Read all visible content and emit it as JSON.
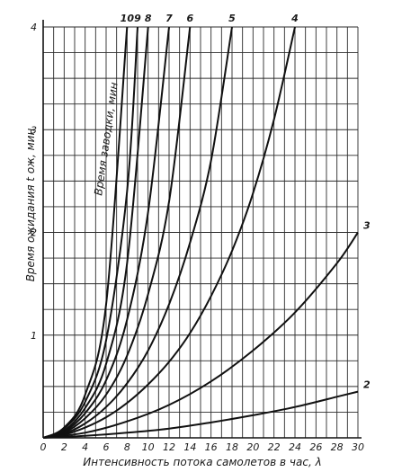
{
  "chart_data": {
    "type": "line",
    "xlabel": "Интенсивность потока самолетов в час, λ",
    "ylabel": "Время ожидания t ож, мин",
    "curve_family_label": "Время заводки, мин",
    "xlim": [
      0,
      30
    ],
    "ylim": [
      0,
      4
    ],
    "x_ticks": [
      "0",
      "2",
      "4",
      "6",
      "8",
      "10",
      "12",
      "14",
      "16",
      "18",
      "20",
      "22",
      "24",
      "26",
      "28",
      "30"
    ],
    "y_ticks": [
      "1",
      "2",
      "3",
      "4"
    ],
    "grid": true,
    "series": [
      {
        "name": "10",
        "x": [
          0,
          2,
          4,
          6,
          8
        ],
        "y": [
          0,
          0.1,
          0.42,
          1.3,
          4.0
        ]
      },
      {
        "name": "9",
        "x": [
          0,
          2,
          4,
          6,
          8,
          9
        ],
        "y": [
          0,
          0.09,
          0.35,
          0.95,
          2.4,
          4.0
        ]
      },
      {
        "name": "8",
        "x": [
          0,
          2,
          4,
          6,
          8,
          10
        ],
        "y": [
          0,
          0.07,
          0.29,
          0.72,
          1.7,
          4.0
        ]
      },
      {
        "name": "7",
        "x": [
          0,
          2,
          4,
          6,
          8,
          10,
          12
        ],
        "y": [
          0,
          0.06,
          0.24,
          0.56,
          1.15,
          2.2,
          4.0
        ]
      },
      {
        "name": "6",
        "x": [
          0,
          2,
          4,
          6,
          8,
          10,
          12,
          14
        ],
        "y": [
          0,
          0.05,
          0.19,
          0.42,
          0.8,
          1.4,
          2.3,
          4.0
        ]
      },
      {
        "name": "5",
        "x": [
          0,
          2,
          4,
          6,
          8,
          10,
          12,
          14,
          16,
          18
        ],
        "y": [
          0,
          0.04,
          0.14,
          0.3,
          0.53,
          0.85,
          1.3,
          1.9,
          2.7,
          4.0
        ]
      },
      {
        "name": "4",
        "x": [
          0,
          2,
          4,
          6,
          8,
          10,
          12,
          14,
          16,
          18,
          20,
          22,
          24
        ],
        "y": [
          0,
          0.03,
          0.1,
          0.2,
          0.34,
          0.52,
          0.74,
          1.02,
          1.38,
          1.82,
          2.38,
          3.1,
          4.0
        ]
      },
      {
        "name": "3",
        "x": [
          0,
          4,
          8,
          12,
          16,
          20,
          24,
          28,
          30
        ],
        "y": [
          0,
          0.05,
          0.16,
          0.32,
          0.55,
          0.85,
          1.22,
          1.7,
          2.0
        ]
      },
      {
        "name": "2",
        "x": [
          0,
          4,
          8,
          12,
          16,
          20,
          24,
          28,
          30
        ],
        "y": [
          0,
          0.02,
          0.05,
          0.09,
          0.15,
          0.22,
          0.3,
          0.4,
          0.45
        ]
      }
    ]
  }
}
